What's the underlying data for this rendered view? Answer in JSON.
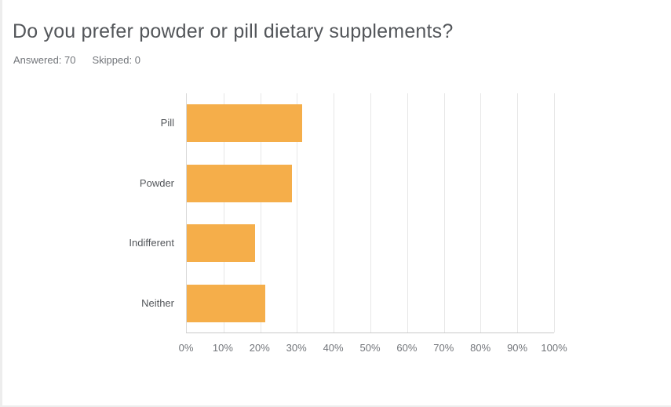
{
  "header": {
    "title": "Do you prefer powder or pill dietary supplements?",
    "answered": "Answered: 70",
    "skipped": "Skipped: 0"
  },
  "colors": {
    "bar": "#f5ae4a",
    "title_text": "#53565a",
    "meta_text": "#72757a",
    "gridline": "#e7e7e7",
    "axis_line": "#c9c9c9",
    "page_edge": "#ededed"
  },
  "chart_data": {
    "type": "bar",
    "orientation": "horizontal",
    "title": "Do you prefer powder or pill dietary supplements?",
    "categories": [
      "Pill",
      "Powder",
      "Indifferent",
      "Neither"
    ],
    "values": [
      31.43,
      28.57,
      18.57,
      21.43
    ],
    "unit": "%",
    "xlabel": "",
    "ylabel": "",
    "xlim": [
      0,
      100
    ],
    "x_tick_labels": [
      "0%",
      "10%",
      "20%",
      "30%",
      "40%",
      "50%",
      "60%",
      "70%",
      "80%",
      "90%",
      "100%"
    ],
    "grid": "vertical",
    "legend": "none",
    "bar_color": "#f5ae4a"
  }
}
